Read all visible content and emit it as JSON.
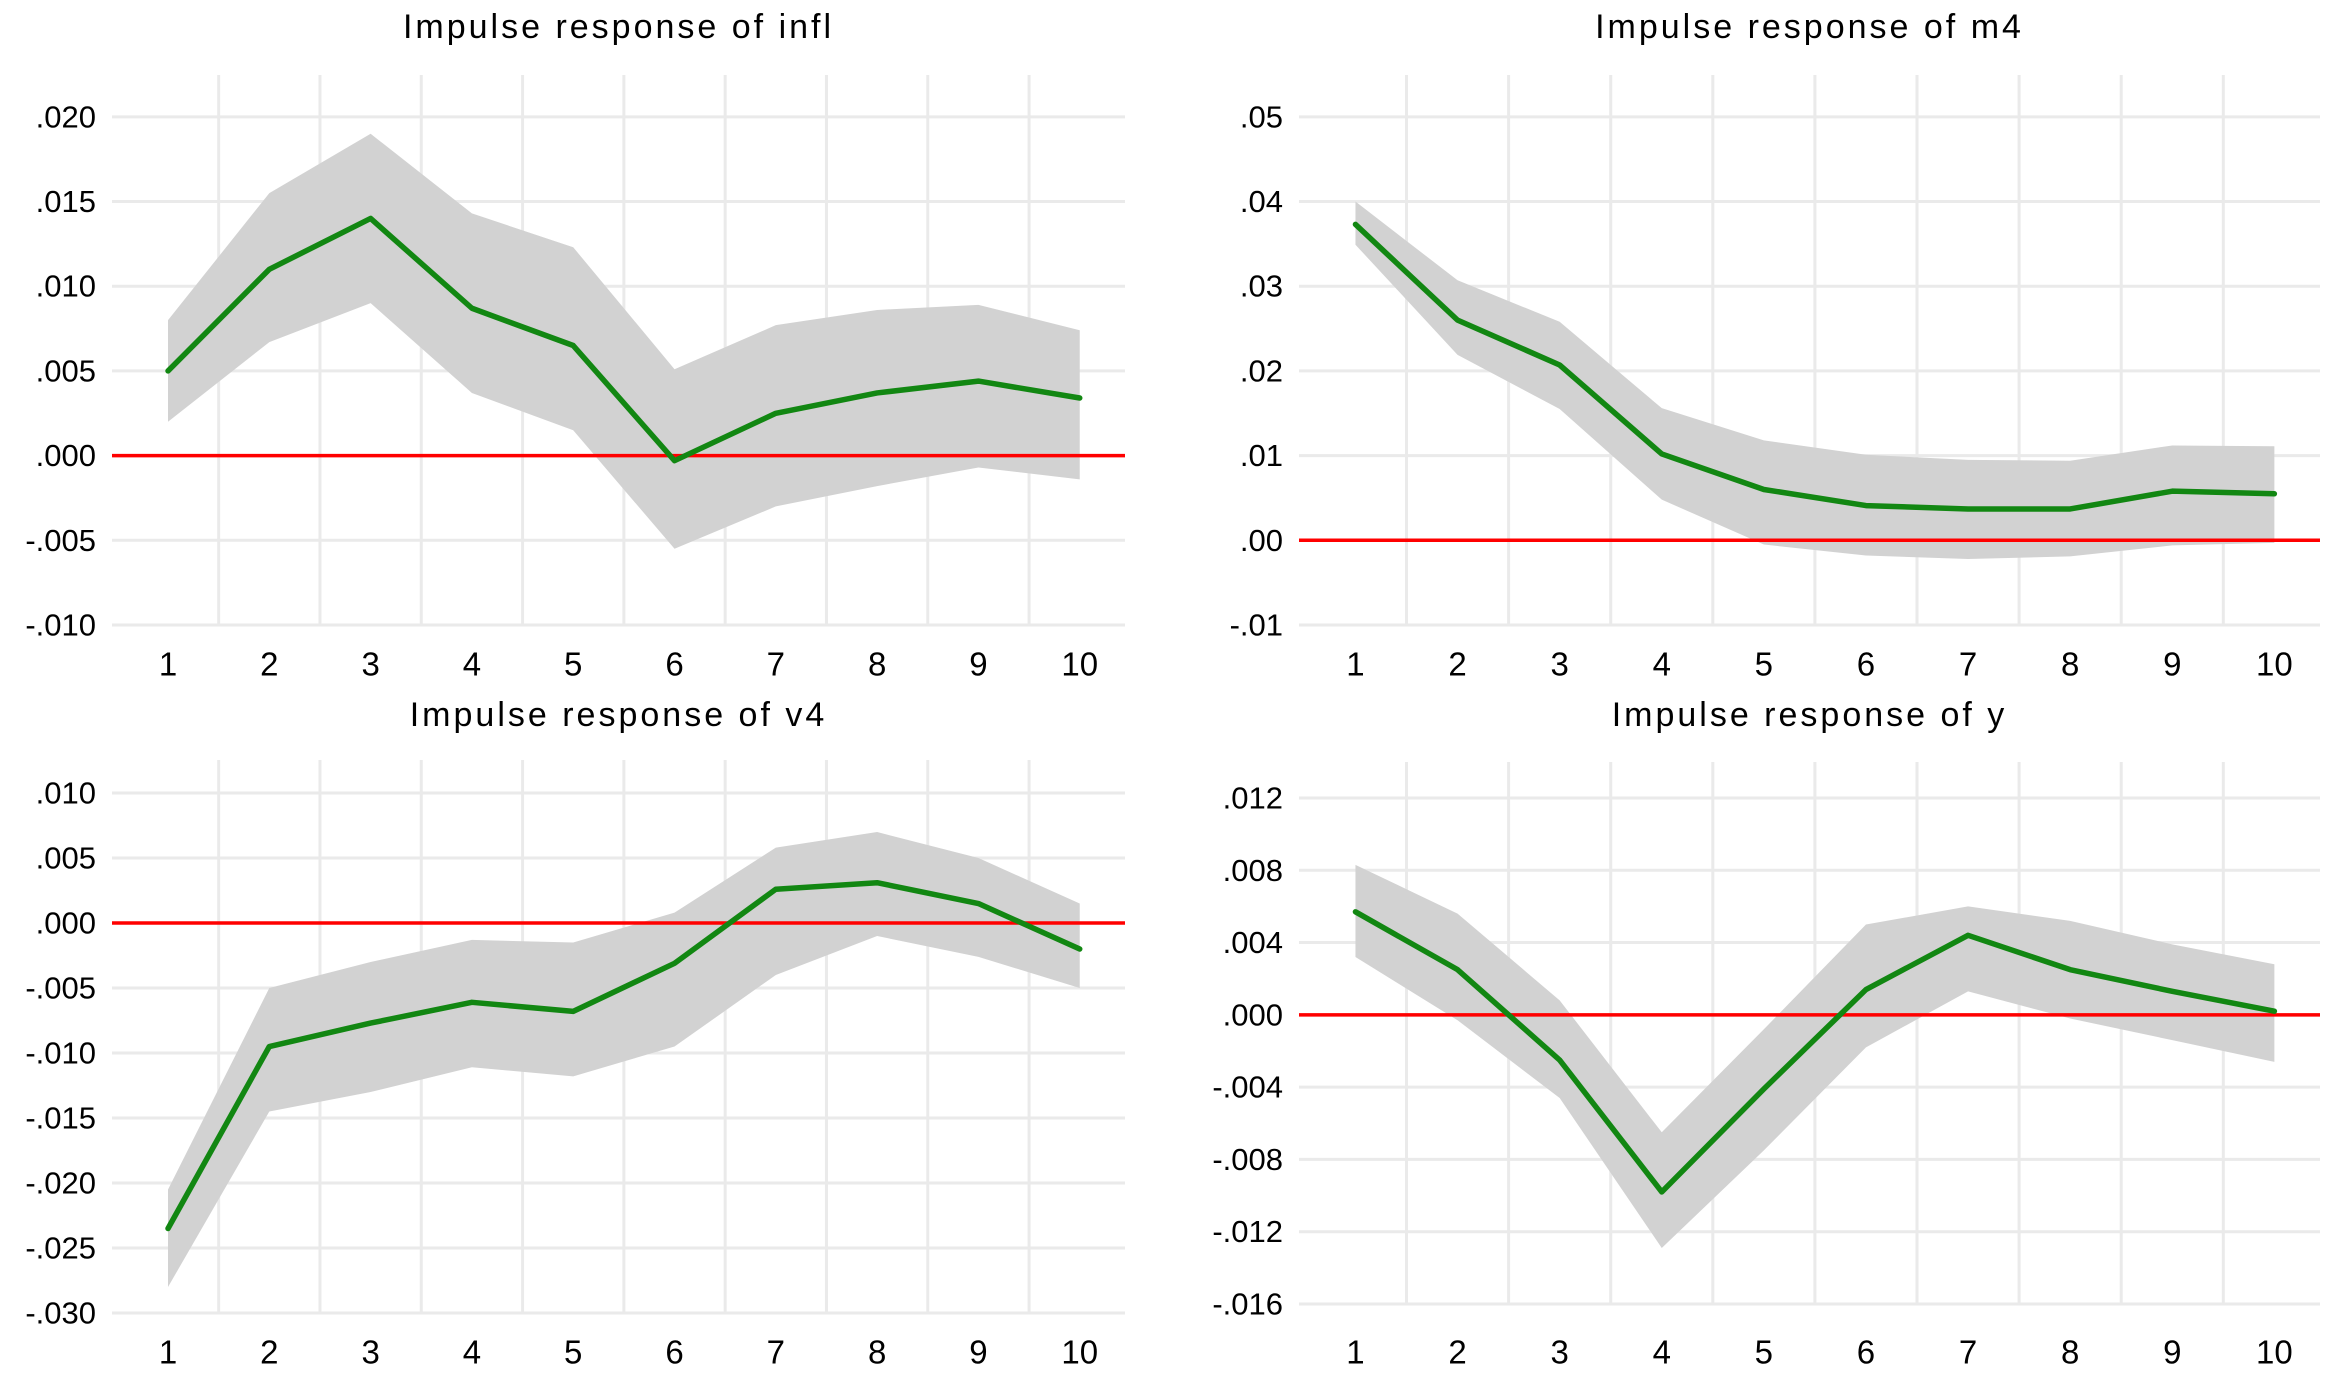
{
  "page": {
    "background": "#ffffff"
  },
  "colors": {
    "irf_line_green": "#128712",
    "zero_line_red": "#ff0000",
    "confidence_band_gray": "#d2d2d2",
    "gridline_gray": "#eaeaea",
    "text_black": "#000000"
  },
  "chart_data": [
    {
      "key": "infl",
      "type": "line",
      "title": "Impulse response of infl",
      "x": [
        1,
        2,
        3,
        4,
        5,
        6,
        7,
        8,
        9,
        10
      ],
      "xticks": [
        "1",
        "2",
        "3",
        "4",
        "5",
        "6",
        "7",
        "8",
        "9",
        "10"
      ],
      "series": [
        {
          "name": "irf",
          "values": [
            0.005,
            0.011,
            0.014,
            0.0087,
            0.0065,
            -0.0003,
            0.0025,
            0.0037,
            0.0044,
            0.0034
          ]
        },
        {
          "name": "ci_upper",
          "values": [
            0.008,
            0.0155,
            0.019,
            0.0143,
            0.0123,
            0.0051,
            0.0077,
            0.0086,
            0.0089,
            0.0074
          ]
        },
        {
          "name": "ci_lower",
          "values": [
            0.002,
            0.0067,
            0.009,
            0.0037,
            0.0015,
            -0.0055,
            -0.003,
            -0.0018,
            -0.0007,
            -0.0014
          ]
        }
      ],
      "yticks": [
        {
          "label": ".020",
          "value": 0.02
        },
        {
          "label": ".015",
          "value": 0.015
        },
        {
          "label": ".010",
          "value": 0.01
        },
        {
          "label": ".005",
          "value": 0.005
        },
        {
          "label": ".000",
          "value": 0.0
        },
        {
          "label": "-.005",
          "value": -0.005
        },
        {
          "label": "-.010",
          "value": -0.01
        }
      ],
      "ylim": [
        -0.01,
        0.02
      ],
      "xlabel": "",
      "ylabel": "",
      "zero_line": true,
      "grid": true,
      "legend": null
    },
    {
      "key": "m4",
      "type": "line",
      "title": "Impulse response of m4",
      "x": [
        1,
        2,
        3,
        4,
        5,
        6,
        7,
        8,
        9,
        10
      ],
      "xticks": [
        "1",
        "2",
        "3",
        "4",
        "5",
        "6",
        "7",
        "8",
        "9",
        "10"
      ],
      "series": [
        {
          "name": "irf",
          "values": [
            0.0373,
            0.026,
            0.0207,
            0.0102,
            0.006,
            0.0041,
            0.0037,
            0.0037,
            0.0058,
            0.0055
          ]
        },
        {
          "name": "ci_upper",
          "values": [
            0.04,
            0.0307,
            0.0258,
            0.0156,
            0.0118,
            0.0101,
            0.0095,
            0.0094,
            0.0112,
            0.0111
          ]
        },
        {
          "name": "ci_lower",
          "values": [
            0.0349,
            0.0219,
            0.0155,
            0.0048,
            -0.0005,
            -0.0018,
            -0.0022,
            -0.0019,
            -0.0006,
            -0.0003
          ]
        }
      ],
      "yticks": [
        {
          "label": ".05",
          "value": 0.05
        },
        {
          "label": ".04",
          "value": 0.04
        },
        {
          "label": ".03",
          "value": 0.03
        },
        {
          "label": ".02",
          "value": 0.02
        },
        {
          "label": ".01",
          "value": 0.01
        },
        {
          "label": ".00",
          "value": 0.0
        },
        {
          "label": "-.01",
          "value": -0.01
        }
      ],
      "ylim": [
        -0.01,
        0.05
      ],
      "xlabel": "",
      "ylabel": "",
      "zero_line": true,
      "grid": true,
      "legend": null
    },
    {
      "key": "v4",
      "type": "line",
      "title": "Impulse response of v4",
      "x": [
        1,
        2,
        3,
        4,
        5,
        6,
        7,
        8,
        9,
        10
      ],
      "xticks": [
        "1",
        "2",
        "3",
        "4",
        "5",
        "6",
        "7",
        "8",
        "9",
        "10"
      ],
      "series": [
        {
          "name": "irf",
          "values": [
            -0.0235,
            -0.0095,
            -0.0077,
            -0.0061,
            -0.0068,
            -0.0031,
            0.0026,
            0.0031,
            0.0015,
            -0.002
          ]
        },
        {
          "name": "ci_upper",
          "values": [
            -0.0205,
            -0.005,
            -0.003,
            -0.0013,
            -0.0015,
            0.0008,
            0.0058,
            0.007,
            0.005,
            0.0015
          ]
        },
        {
          "name": "ci_lower",
          "values": [
            -0.028,
            -0.0145,
            -0.013,
            -0.0111,
            -0.0118,
            -0.0095,
            -0.004,
            -0.001,
            -0.0026,
            -0.005
          ]
        }
      ],
      "yticks": [
        {
          "label": ".010",
          "value": 0.01
        },
        {
          "label": ".005",
          "value": 0.005
        },
        {
          "label": ".000",
          "value": 0.0
        },
        {
          "label": "-.005",
          "value": -0.005
        },
        {
          "label": "-.010",
          "value": -0.01
        },
        {
          "label": "-.015",
          "value": -0.015
        },
        {
          "label": "-.020",
          "value": -0.02
        },
        {
          "label": "-.025",
          "value": -0.025
        },
        {
          "label": "-.030",
          "value": -0.03
        }
      ],
      "ylim": [
        -0.03,
        0.01
      ],
      "xlabel": "",
      "ylabel": "",
      "zero_line": true,
      "grid": true,
      "legend": null
    },
    {
      "key": "y",
      "type": "line",
      "title": "Impulse response of y",
      "x": [
        1,
        2,
        3,
        4,
        5,
        6,
        7,
        8,
        9,
        10
      ],
      "xticks": [
        "1",
        "2",
        "3",
        "4",
        "5",
        "6",
        "7",
        "8",
        "9",
        "10"
      ],
      "series": [
        {
          "name": "irf",
          "values": [
            0.0057,
            0.0025,
            -0.0025,
            -0.0098,
            -0.0041,
            0.0014,
            0.0044,
            0.0025,
            0.0013,
            0.0002
          ]
        },
        {
          "name": "ci_upper",
          "values": [
            0.0083,
            0.0056,
            0.0008,
            -0.0065,
            -0.0008,
            0.005,
            0.006,
            0.0052,
            0.0039,
            0.0028
          ]
        },
        {
          "name": "ci_lower",
          "values": [
            0.0032,
            -0.0003,
            -0.0046,
            -0.0129,
            -0.0075,
            -0.0018,
            0.0013,
            -0.0002,
            -0.0014,
            -0.0026
          ]
        }
      ],
      "yticks": [
        {
          "label": ".012",
          "value": 0.012
        },
        {
          "label": ".008",
          "value": 0.008
        },
        {
          "label": ".004",
          "value": 0.004
        },
        {
          "label": ".000",
          "value": 0.0
        },
        {
          "label": "-.004",
          "value": -0.004
        },
        {
          "label": "-.008",
          "value": -0.008
        },
        {
          "label": "-.012",
          "value": -0.012
        },
        {
          "label": "-.016",
          "value": -0.016
        }
      ],
      "ylim": [
        -0.016,
        0.012
      ],
      "xlabel": "",
      "ylabel": "",
      "zero_line": true,
      "grid": true,
      "legend": null
    }
  ]
}
